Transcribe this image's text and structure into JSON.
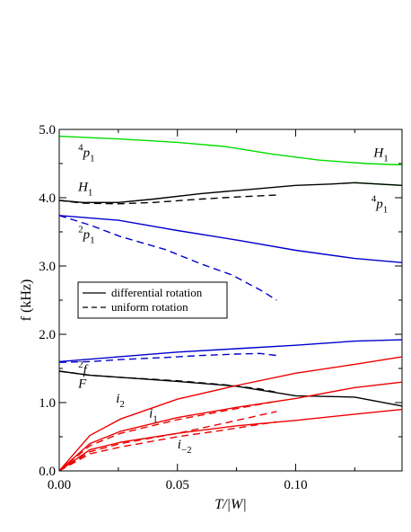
{
  "chart_data": {
    "type": "line",
    "title": "",
    "xlabel": "T/|W|",
    "ylabel": "f (kHz)",
    "xlim": [
      0,
      0.145
    ],
    "ylim": [
      0,
      5.0
    ],
    "x_ticks": [
      0,
      0.05,
      0.1
    ],
    "x_tick_labels": [
      "0.00",
      "0.05",
      "0.10"
    ],
    "y_ticks": [
      0,
      1,
      2,
      3,
      4,
      5
    ],
    "y_tick_labels": [
      "0.0",
      "1.0",
      "2.0",
      "3.0",
      "4.0",
      "5.0"
    ],
    "grid": false,
    "legend": {
      "placement": "center-left",
      "entries": [
        {
          "label": "differential rotation",
          "style": "solid"
        },
        {
          "label": "uniform rotation",
          "style": "dashed"
        }
      ]
    },
    "series": [
      {
        "color": "#00dd00",
        "style": "solid",
        "x": [
          0,
          0.025,
          0.05,
          0.07,
          0.09,
          0.11,
          0.13,
          0.145
        ],
        "y": [
          4.9,
          4.86,
          4.81,
          4.75,
          4.64,
          4.55,
          4.5,
          4.48
        ]
      },
      {
        "color": "#00dd00",
        "style": "solid",
        "x": [
          0.125,
          0.145
        ],
        "y": [
          4.22,
          4.18
        ]
      },
      {
        "color": "#000000",
        "style": "solid",
        "x": [
          0,
          0.01,
          0.025,
          0.04,
          0.06,
          0.08,
          0.1,
          0.115,
          0.125,
          0.135,
          0.145
        ],
        "y": [
          3.96,
          3.93,
          3.93,
          3.98,
          4.06,
          4.12,
          4.18,
          4.2,
          4.22,
          4.2,
          4.18
        ]
      },
      {
        "color": "#000000",
        "style": "dashed",
        "x": [
          0,
          0.01,
          0.025,
          0.04,
          0.06,
          0.075,
          0.092
        ],
        "y": [
          3.96,
          3.92,
          3.91,
          3.93,
          3.98,
          4.01,
          4.04
        ]
      },
      {
        "color": "#0000cc",
        "style": "solid",
        "x": [
          0,
          0.025,
          0.05,
          0.075,
          0.1,
          0.125,
          0.145
        ],
        "y": [
          3.74,
          3.67,
          3.52,
          3.38,
          3.23,
          3.11,
          3.05
        ]
      },
      {
        "color": "#0000cc",
        "style": "dashed",
        "x": [
          0,
          0.013,
          0.026,
          0.045,
          0.06,
          0.073,
          0.085,
          0.092
        ],
        "y": [
          3.74,
          3.6,
          3.43,
          3.24,
          3.03,
          2.87,
          2.65,
          2.5
        ]
      },
      {
        "color": "#0000cc",
        "style": "solid",
        "x": [
          0,
          0.025,
          0.05,
          0.075,
          0.1,
          0.125,
          0.145
        ],
        "y": [
          1.6,
          1.67,
          1.74,
          1.79,
          1.84,
          1.9,
          1.92
        ]
      },
      {
        "color": "#0000cc",
        "style": "dashed",
        "x": [
          0,
          0.013,
          0.026,
          0.045,
          0.06,
          0.075,
          0.085,
          0.092
        ],
        "y": [
          1.59,
          1.6,
          1.63,
          1.66,
          1.69,
          1.71,
          1.72,
          1.69
        ]
      },
      {
        "color": "#000000",
        "style": "solid",
        "x": [
          0,
          0.013,
          0.026,
          0.05,
          0.075,
          0.1,
          0.125,
          0.145
        ],
        "y": [
          1.46,
          1.4,
          1.37,
          1.31,
          1.24,
          1.1,
          1.08,
          0.95
        ]
      },
      {
        "color": "#000000",
        "style": "dashed",
        "x": [
          0,
          0.013,
          0.026,
          0.05,
          0.07,
          0.085,
          0.092
        ],
        "y": [
          1.46,
          1.4,
          1.37,
          1.32,
          1.26,
          1.2,
          1.15
        ]
      },
      {
        "color": "#ee0000",
        "style": "solid",
        "x": [
          0,
          0.013,
          0.026,
          0.05,
          0.075,
          0.1,
          0.125,
          0.145
        ],
        "y": [
          0,
          0.52,
          0.76,
          1.05,
          1.25,
          1.43,
          1.56,
          1.67
        ]
      },
      {
        "color": "#ee0000",
        "style": "solid",
        "x": [
          0,
          0.013,
          0.026,
          0.05,
          0.075,
          0.1,
          0.125,
          0.145
        ],
        "y": [
          0,
          0.4,
          0.58,
          0.78,
          0.93,
          1.06,
          1.22,
          1.3
        ]
      },
      {
        "color": "#ee0000",
        "style": "solid",
        "x": [
          0,
          0.013,
          0.026,
          0.05,
          0.075,
          0.1,
          0.125,
          0.145
        ],
        "y": [
          0,
          0.31,
          0.42,
          0.55,
          0.66,
          0.74,
          0.83,
          0.9
        ]
      },
      {
        "color": "#ee0000",
        "style": "dashed",
        "x": [
          0,
          0.013,
          0.026,
          0.05,
          0.07,
          0.092
        ],
        "y": [
          0,
          0.37,
          0.55,
          0.75,
          0.88,
          1.02
        ]
      },
      {
        "color": "#ee0000",
        "style": "dashed",
        "x": [
          0,
          0.013,
          0.026,
          0.05,
          0.07,
          0.092
        ],
        "y": [
          0,
          0.28,
          0.4,
          0.55,
          0.7,
          0.87
        ]
      },
      {
        "color": "#ee0000",
        "style": "dashed",
        "x": [
          0,
          0.013,
          0.026,
          0.05,
          0.07,
          0.092
        ],
        "y": [
          0,
          0.25,
          0.35,
          0.5,
          0.6,
          0.72
        ]
      }
    ],
    "annotations": [
      {
        "id": "h1-top",
        "base": "H",
        "sub": "1",
        "x": 0.133,
        "y": 4.6
      },
      {
        "id": "p1-4-left",
        "pre": "4",
        "base": "p",
        "sub": "1",
        "x": 0.008,
        "y": 4.6
      },
      {
        "id": "h1-mid",
        "base": "H",
        "sub": "1",
        "x": 0.008,
        "y": 4.1
      },
      {
        "id": "p1-4-right",
        "pre": "4",
        "base": "p",
        "sub": "1",
        "x": 0.132,
        "y": 3.85
      },
      {
        "id": "p1-2",
        "pre": "2",
        "base": "p",
        "sub": "1",
        "x": 0.008,
        "y": 3.4
      },
      {
        "id": "f-2",
        "pre": "2",
        "base": "f",
        "sub": "",
        "x": 0.008,
        "y": 1.42
      },
      {
        "id": "F",
        "base": "F",
        "sub": "",
        "x": 0.008,
        "y": 1.22
      },
      {
        "id": "i2",
        "base": "i",
        "sub": "2",
        "x": 0.024,
        "y": 1.0
      },
      {
        "id": "i1",
        "base": "i",
        "sub": "1",
        "x": 0.038,
        "y": 0.78
      },
      {
        "id": "i-2",
        "base": "i",
        "sub": "−2",
        "x": 0.05,
        "y": 0.33
      }
    ]
  }
}
